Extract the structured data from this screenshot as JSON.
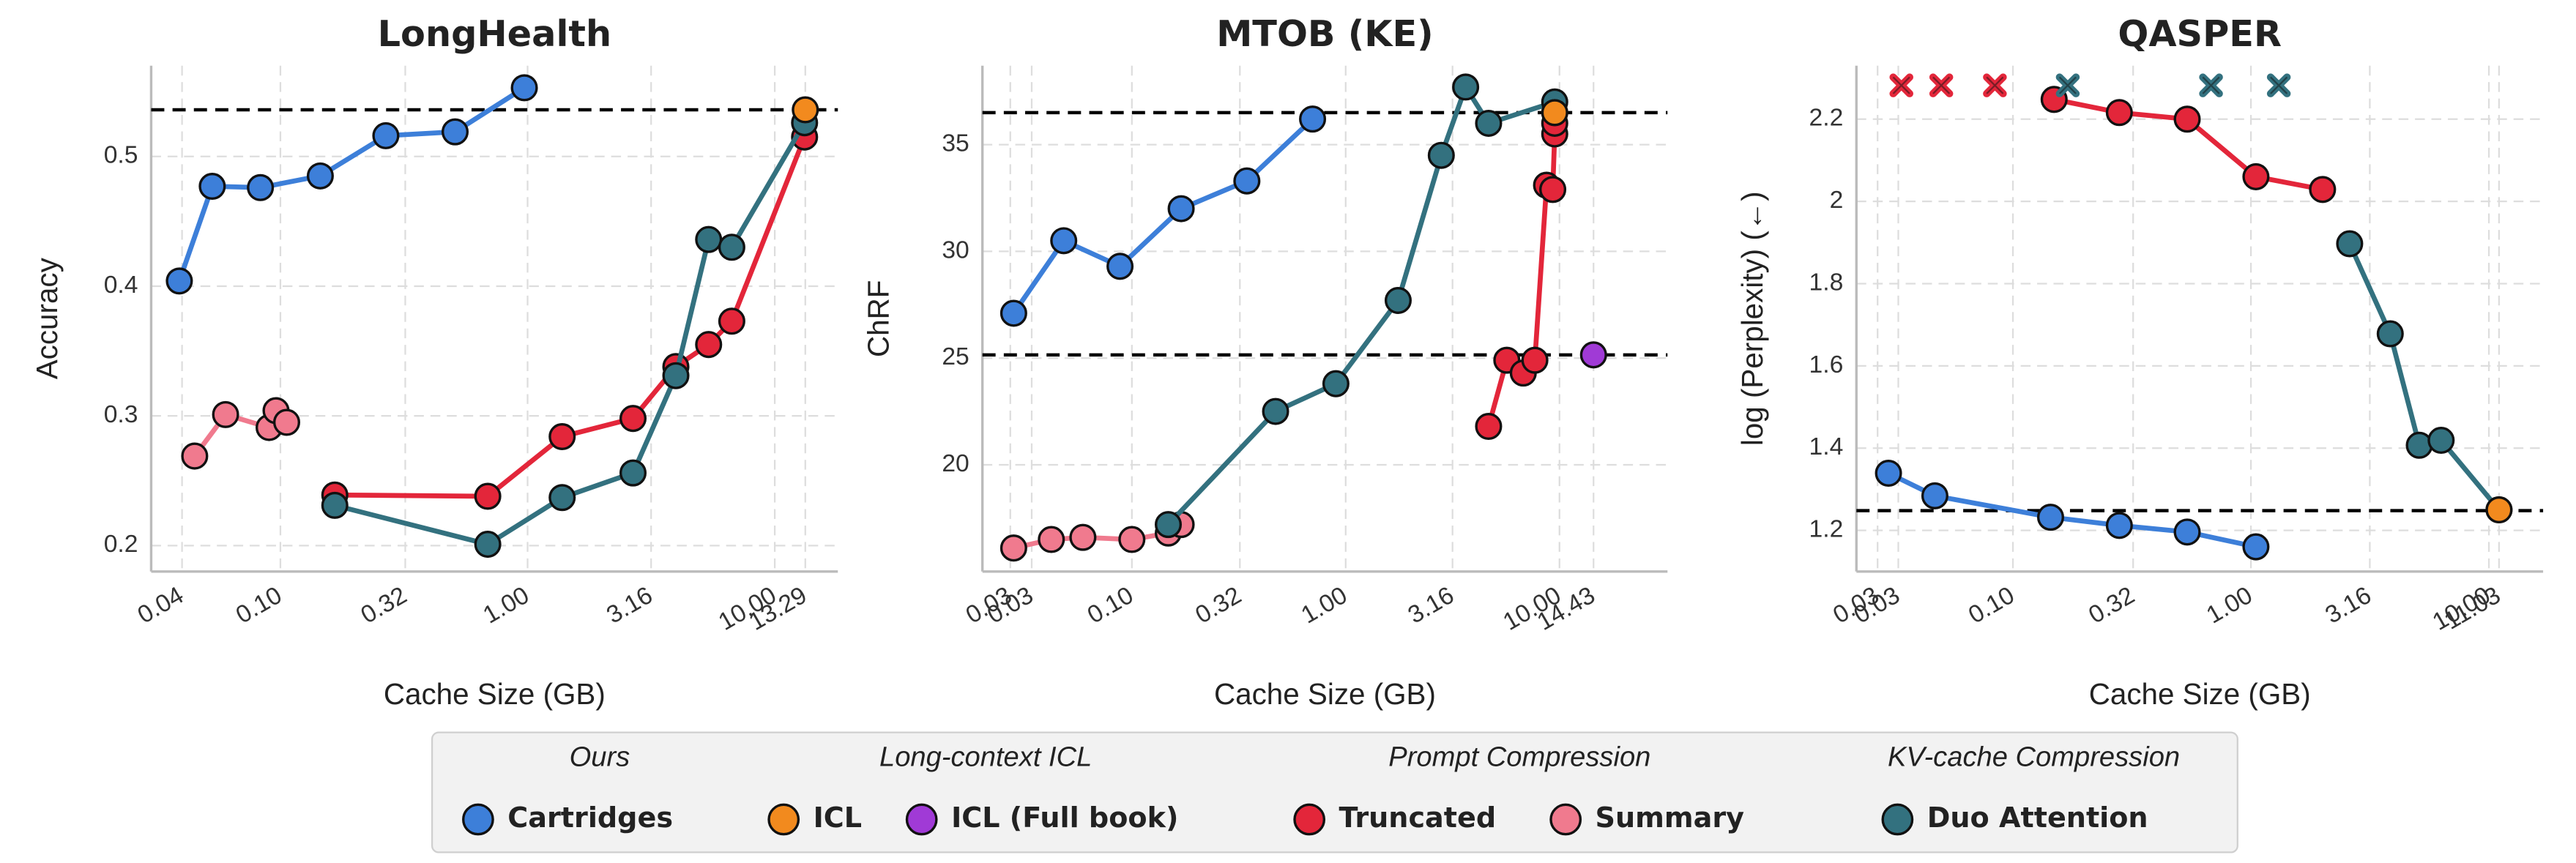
{
  "chart_data": [
    {
      "type": "line",
      "title": "LongHealth",
      "x_label": "Cache Size (GB)",
      "y_label": "Accuracy",
      "log_x": true,
      "grid": true,
      "xlim": [
        0.03,
        18
      ],
      "ylim": [
        0.18,
        0.57
      ],
      "xticks": [
        0.04,
        {
          "value": 0.1,
          "label": "0.10"
        },
        0.32,
        {
          "value": 1,
          "label": "1.00"
        },
        3.16,
        {
          "value": 10,
          "label": "10.00"
        },
        13.29
      ],
      "yticks": [
        0.2,
        0.3,
        0.4,
        0.5
      ],
      "hlines": [
        0.536
      ],
      "series": [
        {
          "name": "Cartridges",
          "color": "#3d7fd9",
          "x": [
            0.039,
            0.053,
            0.083,
            0.145,
            0.267,
            0.509,
            0.97
          ],
          "values": [
            0.404,
            0.477,
            0.476,
            0.485,
            0.516,
            0.519,
            0.553
          ]
        },
        {
          "name": "Summary",
          "color": "#f07a8e",
          "x": [
            0.045,
            0.06,
            0.09,
            0.096,
            0.106
          ],
          "values": [
            0.269,
            0.301,
            0.291,
            0.304,
            0.295
          ]
        },
        {
          "name": "Truncated",
          "color": "#e3263a",
          "x": [
            0.166,
            0.69,
            1.38,
            2.67,
            3.98,
            5.4,
            6.7,
            13.2
          ],
          "values": [
            0.239,
            0.238,
            0.284,
            0.298,
            0.338,
            0.355,
            0.373,
            0.515
          ]
        },
        {
          "name": "Duo Attention",
          "color": "#33717f",
          "x": [
            0.166,
            0.69,
            1.38,
            2.67,
            3.98,
            5.4,
            6.7,
            13.2
          ],
          "values": [
            0.231,
            0.201,
            0.237,
            0.256,
            0.331,
            0.436,
            0.43,
            0.526
          ]
        },
        {
          "name": "ICL",
          "color": "#f28a1e",
          "x": [
            13.29
          ],
          "values": [
            0.536
          ]
        }
      ]
    },
    {
      "type": "line",
      "title": "MTOB (KE)",
      "x_label": "Cache Size (GB)",
      "y_label": "ChRF",
      "log_x": true,
      "grid": true,
      "xlim": [
        0.02,
        32
      ],
      "ylim": [
        15,
        38.7
      ],
      "xticks": [
        {
          "value": 0.027,
          "label": "0.03"
        },
        {
          "value": 0.034,
          "label": "0.03"
        },
        {
          "value": 0.1,
          "label": "0.10"
        },
        0.32,
        {
          "value": 1,
          "label": "1.00"
        },
        3.16,
        {
          "value": 10,
          "label": "10.00"
        },
        14.43
      ],
      "yticks": [
        20,
        25,
        30,
        35
      ],
      "hlines": [
        36.5,
        25.15
      ],
      "series": [
        {
          "name": "Cartridges",
          "color": "#3d7fd9",
          "x": [
            0.028,
            0.048,
            0.088,
            0.17,
            0.345,
            0.7
          ],
          "values": [
            27.1,
            30.5,
            29.3,
            32.0,
            33.3,
            36.2
          ]
        },
        {
          "name": "Summary",
          "color": "#f07a8e",
          "x": [
            0.028,
            0.042,
            0.059,
            0.1,
            0.148,
            0.17
          ],
          "values": [
            16.1,
            16.5,
            16.6,
            16.5,
            16.8,
            17.2
          ]
        },
        {
          "name": "Duo Attention",
          "color": "#33717f",
          "x": [
            0.148,
            0.47,
            0.9,
            1.76,
            2.8,
            3.64,
            4.66,
            9.5
          ],
          "values": [
            17.2,
            22.5,
            23.8,
            27.7,
            34.5,
            37.7,
            36.0,
            37.0
          ]
        },
        {
          "name": "Truncated",
          "color": "#e3263a",
          "x": [
            4.66,
            5.67,
            6.77,
            7.67,
            8.7,
            9.3,
            9.5,
            9.5,
            9.5
          ],
          "values": [
            21.8,
            24.9,
            24.3,
            24.9,
            33.1,
            32.9,
            35.5,
            36.0,
            36.5
          ]
        },
        {
          "name": "ICL",
          "color": "#f28a1e",
          "x": [
            9.5
          ],
          "values": [
            36.5
          ]
        },
        {
          "name": "ICL (Full book)",
          "color": "#a03ad6",
          "x": [
            14.43
          ],
          "values": [
            25.15
          ]
        }
      ]
    },
    {
      "type": "line",
      "title": "QASPER",
      "x_label": "Cache Size (GB)",
      "y_label": "log (Perplexity) (←)",
      "log_x": true,
      "grid": true,
      "xlim": [
        0.022,
        16.9
      ],
      "ylim": [
        1.1,
        2.33
      ],
      "xticks": [
        {
          "value": 0.027,
          "label": "0.03"
        },
        {
          "value": 0.033,
          "label": "0.03"
        },
        {
          "value": 0.1,
          "label": "0.10"
        },
        0.32,
        {
          "value": 1,
          "label": "1.00"
        },
        3.16,
        {
          "value": 10,
          "label": "10.00"
        },
        11.03
      ],
      "yticks": [
        1.2,
        1.4,
        1.6,
        1.8,
        2.0,
        2.2
      ],
      "hlines": [
        1.248
      ],
      "series": [
        {
          "name": "Cartridges",
          "color": "#3d7fd9",
          "x": [
            0.03,
            0.047,
            0.144,
            0.28,
            0.54,
            1.05
          ],
          "values": [
            1.339,
            1.284,
            1.232,
            1.212,
            1.196,
            1.16
          ]
        },
        {
          "name": "Truncated",
          "color": "#e3263a",
          "x": [
            0.149,
            0.28,
            0.54,
            1.05,
            2.0
          ],
          "values": [
            2.248,
            2.216,
            2.2,
            2.06,
            2.029
          ],
          "failed_x": [
            0.034,
            0.05,
            0.084
          ]
        },
        {
          "name": "Duo Attention",
          "color": "#33717f",
          "x": [
            2.6,
            3.85,
            5.1,
            6.3,
            11.03
          ],
          "values": [
            1.897,
            1.678,
            1.407,
            1.419,
            1.25
          ],
          "failed_x": [
            0.17,
            0.68,
            1.31
          ]
        },
        {
          "name": "ICL",
          "color": "#f28a1e",
          "x": [
            11.03
          ],
          "values": [
            1.25
          ]
        }
      ]
    }
  ],
  "legend": {
    "groups": [
      {
        "title": "Ours",
        "entries": [
          {
            "name": "Cartridges",
            "color": "#3d7fd9"
          }
        ]
      },
      {
        "title": "Long-context ICL",
        "entries": [
          {
            "name": "ICL",
            "color": "#f28a1e"
          },
          {
            "name": "ICL (Full book)",
            "color": "#a03ad6"
          }
        ]
      },
      {
        "title": "Prompt Compression",
        "entries": [
          {
            "name": "Truncated",
            "color": "#e3263a"
          },
          {
            "name": "Summary",
            "color": "#f07a8e"
          }
        ]
      },
      {
        "title": "KV-cache Compression",
        "entries": [
          {
            "name": "Duo Attention",
            "color": "#33717f"
          }
        ]
      }
    ]
  }
}
